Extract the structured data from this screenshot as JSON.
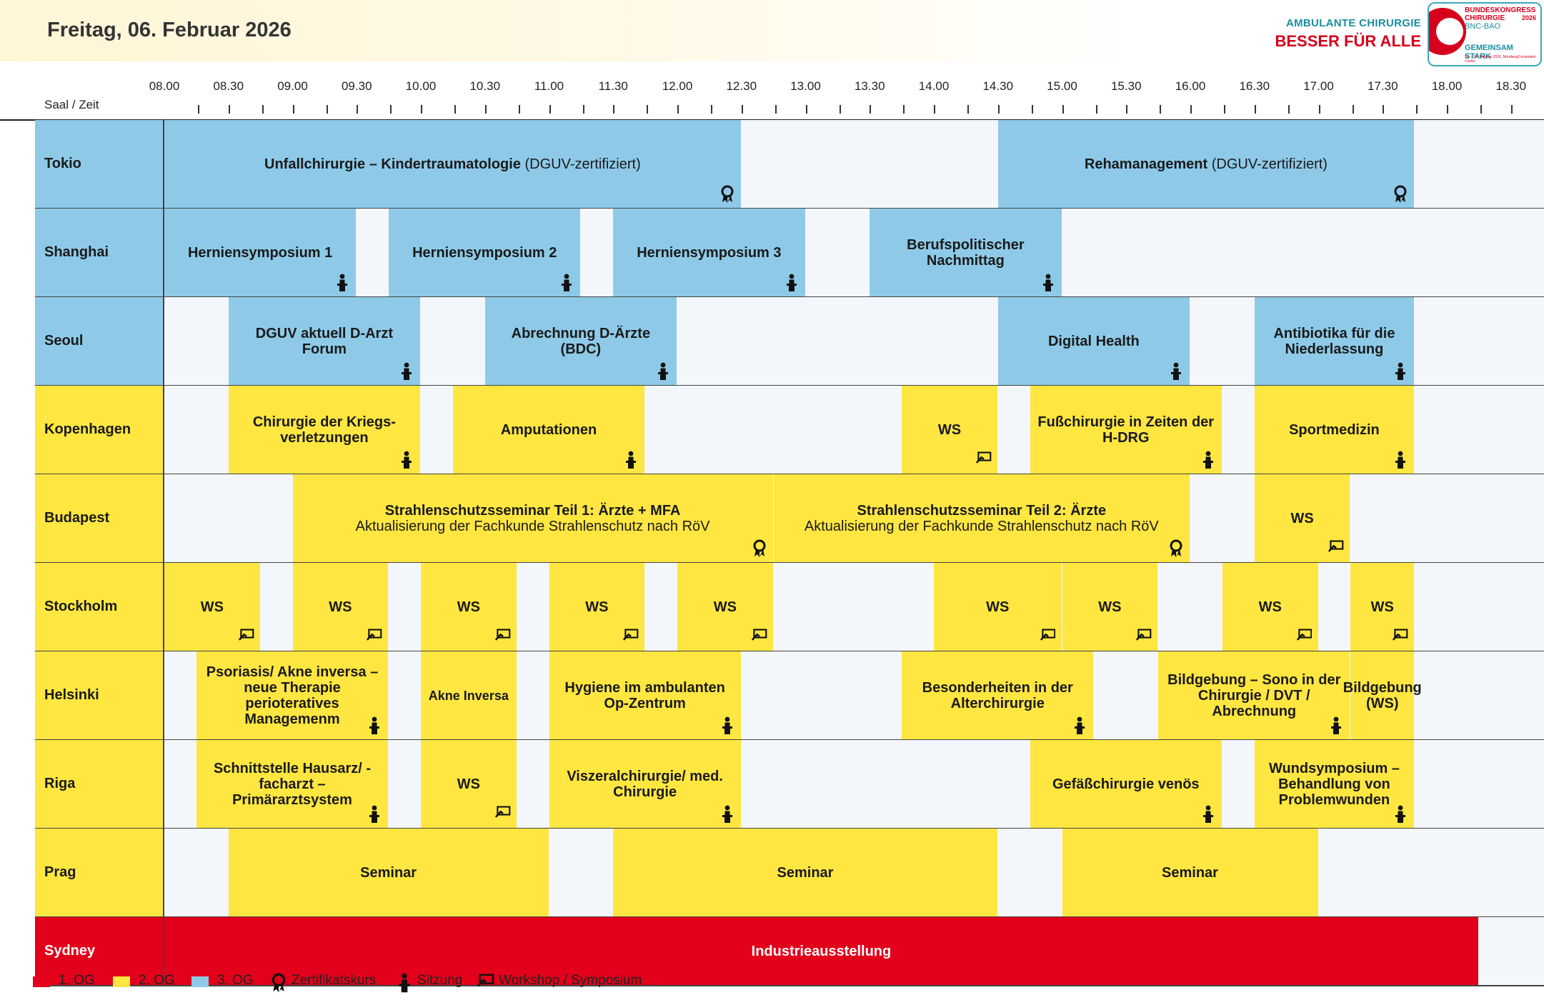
{
  "header": {
    "date": "Freitag, 06. Februar 2026",
    "logo_line1": "AMBULANTE CHIRURGIE",
    "logo_line2": "BESSER FÜR ALLE",
    "badge_title": "BUNDESKONGRESS CHIRURGIE",
    "badge_year": "2026",
    "badge_org": "BNC-BAO",
    "badge_motto": "GEMEINSAM STARK",
    "badge_dates": "06. – 07. Februar 2026, NürnbergConvention Center"
  },
  "colors": {
    "og1": "#e2001a",
    "og2": "#ffe640",
    "og3": "#8ecae8"
  },
  "axis": {
    "room_label": "Saal / Zeit",
    "ticks": [
      "08.00",
      "08.30",
      "09.00",
      "09.30",
      "10.00",
      "10.30",
      "11.00",
      "11.30",
      "12.00",
      "12.30",
      "13.00",
      "13.30",
      "14.00",
      "14.30",
      "15.00",
      "15.30",
      "16.00",
      "16.30",
      "17.00",
      "17.30",
      "18.00",
      "18.30"
    ]
  },
  "rooms": [
    {
      "name": "Tokio",
      "floor": "og3",
      "sessions": [
        {
          "start": "08.00",
          "end": "12.30",
          "title": "Unfallchirurgie – Kindertraumatologie",
          "sub": "(DGUV-zertifiziert)",
          "icon": "certificate-icon"
        },
        {
          "start": "14.30",
          "end": "17.45",
          "title": "Rehamanagement",
          "sub": "(DGUV-zertifiziert)",
          "icon": "certificate-icon"
        }
      ]
    },
    {
      "name": "Shanghai",
      "floor": "og3",
      "sessions": [
        {
          "start": "08.00",
          "end": "09.30",
          "title": "Herniensymposium 1",
          "icon": "session-icon"
        },
        {
          "start": "09.45",
          "end": "11.15",
          "title": "Herniensymposium 2",
          "icon": "session-icon"
        },
        {
          "start": "11.30",
          "end": "13.00",
          "title": "Herniensymposium 3",
          "icon": "session-icon"
        },
        {
          "start": "13.30",
          "end": "15.00",
          "title": "Berufspolitischer Nachmittag",
          "icon": "session-icon"
        }
      ]
    },
    {
      "name": "Seoul",
      "floor": "og3",
      "sessions": [
        {
          "start": "08.30",
          "end": "10.00",
          "title": "DGUV aktuell D-Arzt Forum",
          "icon": "session-icon"
        },
        {
          "start": "10.30",
          "end": "12.00",
          "title": "Abrechnung D-Ärzte (BDC)",
          "icon": "session-icon"
        },
        {
          "start": "14.30",
          "end": "16.00",
          "title": "Digital Health",
          "icon": "session-icon"
        },
        {
          "start": "16.30",
          "end": "17.45",
          "title": "Antibiotika für die Niederlassung",
          "icon": "session-icon"
        }
      ]
    },
    {
      "name": "Kopenhagen",
      "floor": "og2",
      "sessions": [
        {
          "start": "08.30",
          "end": "10.00",
          "title": "Chirurgie der Kriegs-verletzungen",
          "icon": "session-icon"
        },
        {
          "start": "10.15",
          "end": "11.45",
          "title": "Amputationen",
          "icon": "session-icon"
        },
        {
          "start": "13.45",
          "end": "14.30",
          "title": "WS",
          "icon": "workshop-icon"
        },
        {
          "start": "14.45",
          "end": "16.15",
          "title": "Fußchirurgie in Zeiten der H-DRG",
          "icon": "session-icon"
        },
        {
          "start": "16.30",
          "end": "17.45",
          "title": "Sportmedizin",
          "icon": "session-icon"
        }
      ]
    },
    {
      "name": "Budapest",
      "floor": "og2",
      "sessions": [
        {
          "start": "09.00",
          "end": "12.45",
          "title": "Strahlenschutzsseminar Teil 1: Ärzte + MFA",
          "sub": "Aktualisierung der Fachkunde Strahlenschutz nach RöV",
          "icon": "certificate-icon"
        },
        {
          "start": "12.45",
          "end": "16.00",
          "title": "Strahlenschutzsseminar Teil 2: Ärzte",
          "sub": "Aktualisierung der Fachkunde Strahlenschutz nach RöV",
          "icon": "certificate-icon"
        },
        {
          "start": "16.30",
          "end": "17.15",
          "title": "WS",
          "icon": "workshop-icon"
        }
      ]
    },
    {
      "name": "Stockholm",
      "floor": "og2",
      "sessions": [
        {
          "start": "08.00",
          "end": "08.45",
          "title": "WS",
          "icon": "workshop-icon"
        },
        {
          "start": "09.00",
          "end": "09.45",
          "title": "WS",
          "icon": "workshop-icon"
        },
        {
          "start": "10.00",
          "end": "10.45",
          "title": "WS",
          "icon": "workshop-icon"
        },
        {
          "start": "11.00",
          "end": "11.45",
          "title": "WS",
          "icon": "workshop-icon"
        },
        {
          "start": "12.00",
          "end": "12.45",
          "title": "WS",
          "icon": "workshop-icon"
        },
        {
          "start": "14.00",
          "end": "15.00",
          "title": "WS",
          "icon": "workshop-icon"
        },
        {
          "start": "15.00",
          "end": "15.45",
          "title": "WS",
          "icon": "workshop-icon"
        },
        {
          "start": "16.15",
          "end": "17.00",
          "title": "WS",
          "icon": "workshop-icon"
        },
        {
          "start": "17.15",
          "end": "17.45",
          "title": "WS",
          "icon": "workshop-icon"
        }
      ]
    },
    {
      "name": "Helsinki",
      "floor": "og2",
      "sessions": [
        {
          "start": "08.15",
          "end": "09.45",
          "title": "Psoriasis/ Akne inversa – neue Therapie perioteratives Managemenm",
          "icon": "session-icon"
        },
        {
          "start": "10.00",
          "end": "10.45",
          "title": "Akne Inversa",
          "small": true
        },
        {
          "start": "11.00",
          "end": "12.30",
          "title": "Hygiene im ambulanten Op-Zentrum",
          "icon": "session-icon"
        },
        {
          "start": "13.45",
          "end": "15.15",
          "title": "Besonderheiten in der Alterchirurgie",
          "icon": "session-icon"
        },
        {
          "start": "15.45",
          "end": "17.15",
          "title": "Bildgebung – Sono in der Chirurgie / DVT / Abrechnung",
          "icon": "session-icon"
        },
        {
          "start": "17.15",
          "end": "17.45",
          "title": "Bildgebung (WS)"
        }
      ]
    },
    {
      "name": "Riga",
      "floor": "og2",
      "sessions": [
        {
          "start": "08.15",
          "end": "09.45",
          "title": "Schnittstelle Hausarz/ -facharzt – Primärarztsystem",
          "icon": "session-icon"
        },
        {
          "start": "10.00",
          "end": "10.45",
          "title": "WS",
          "icon": "workshop-icon"
        },
        {
          "start": "11.00",
          "end": "12.30",
          "title": "Viszeralchirurgie/ med. Chirurgie",
          "icon": "session-icon"
        },
        {
          "start": "14.45",
          "end": "16.15",
          "title": "Gefäßchirurgie venös",
          "icon": "session-icon"
        },
        {
          "start": "16.30",
          "end": "17.45",
          "title": "Wundsymposium – Behandlung von Problemwunden",
          "icon": "session-icon"
        }
      ]
    },
    {
      "name": "Prag",
      "floor": "og2",
      "sessions": [
        {
          "start": "08.30",
          "end": "11.00",
          "title": "Seminar"
        },
        {
          "start": "11.30",
          "end": "14.30",
          "title": "Seminar"
        },
        {
          "start": "15.00",
          "end": "17.00",
          "title": "Seminar"
        }
      ]
    },
    {
      "name": "Sydney",
      "floor": "og1",
      "sessions": [
        {
          "start": "08.00",
          "end": "18.15",
          "title": "Industrieausstellung"
        }
      ]
    }
  ],
  "legend": [
    {
      "color": "og1",
      "label": "1. OG"
    },
    {
      "color": "og2",
      "label": "2. OG"
    },
    {
      "color": "og3",
      "label": "3. OG"
    },
    {
      "icon": "certificate-icon",
      "label": "Zertifikatskurs"
    },
    {
      "icon": "session-icon",
      "label": "Sitzung"
    },
    {
      "icon": "workshop-icon",
      "label": "Workshop / Symposium"
    }
  ]
}
